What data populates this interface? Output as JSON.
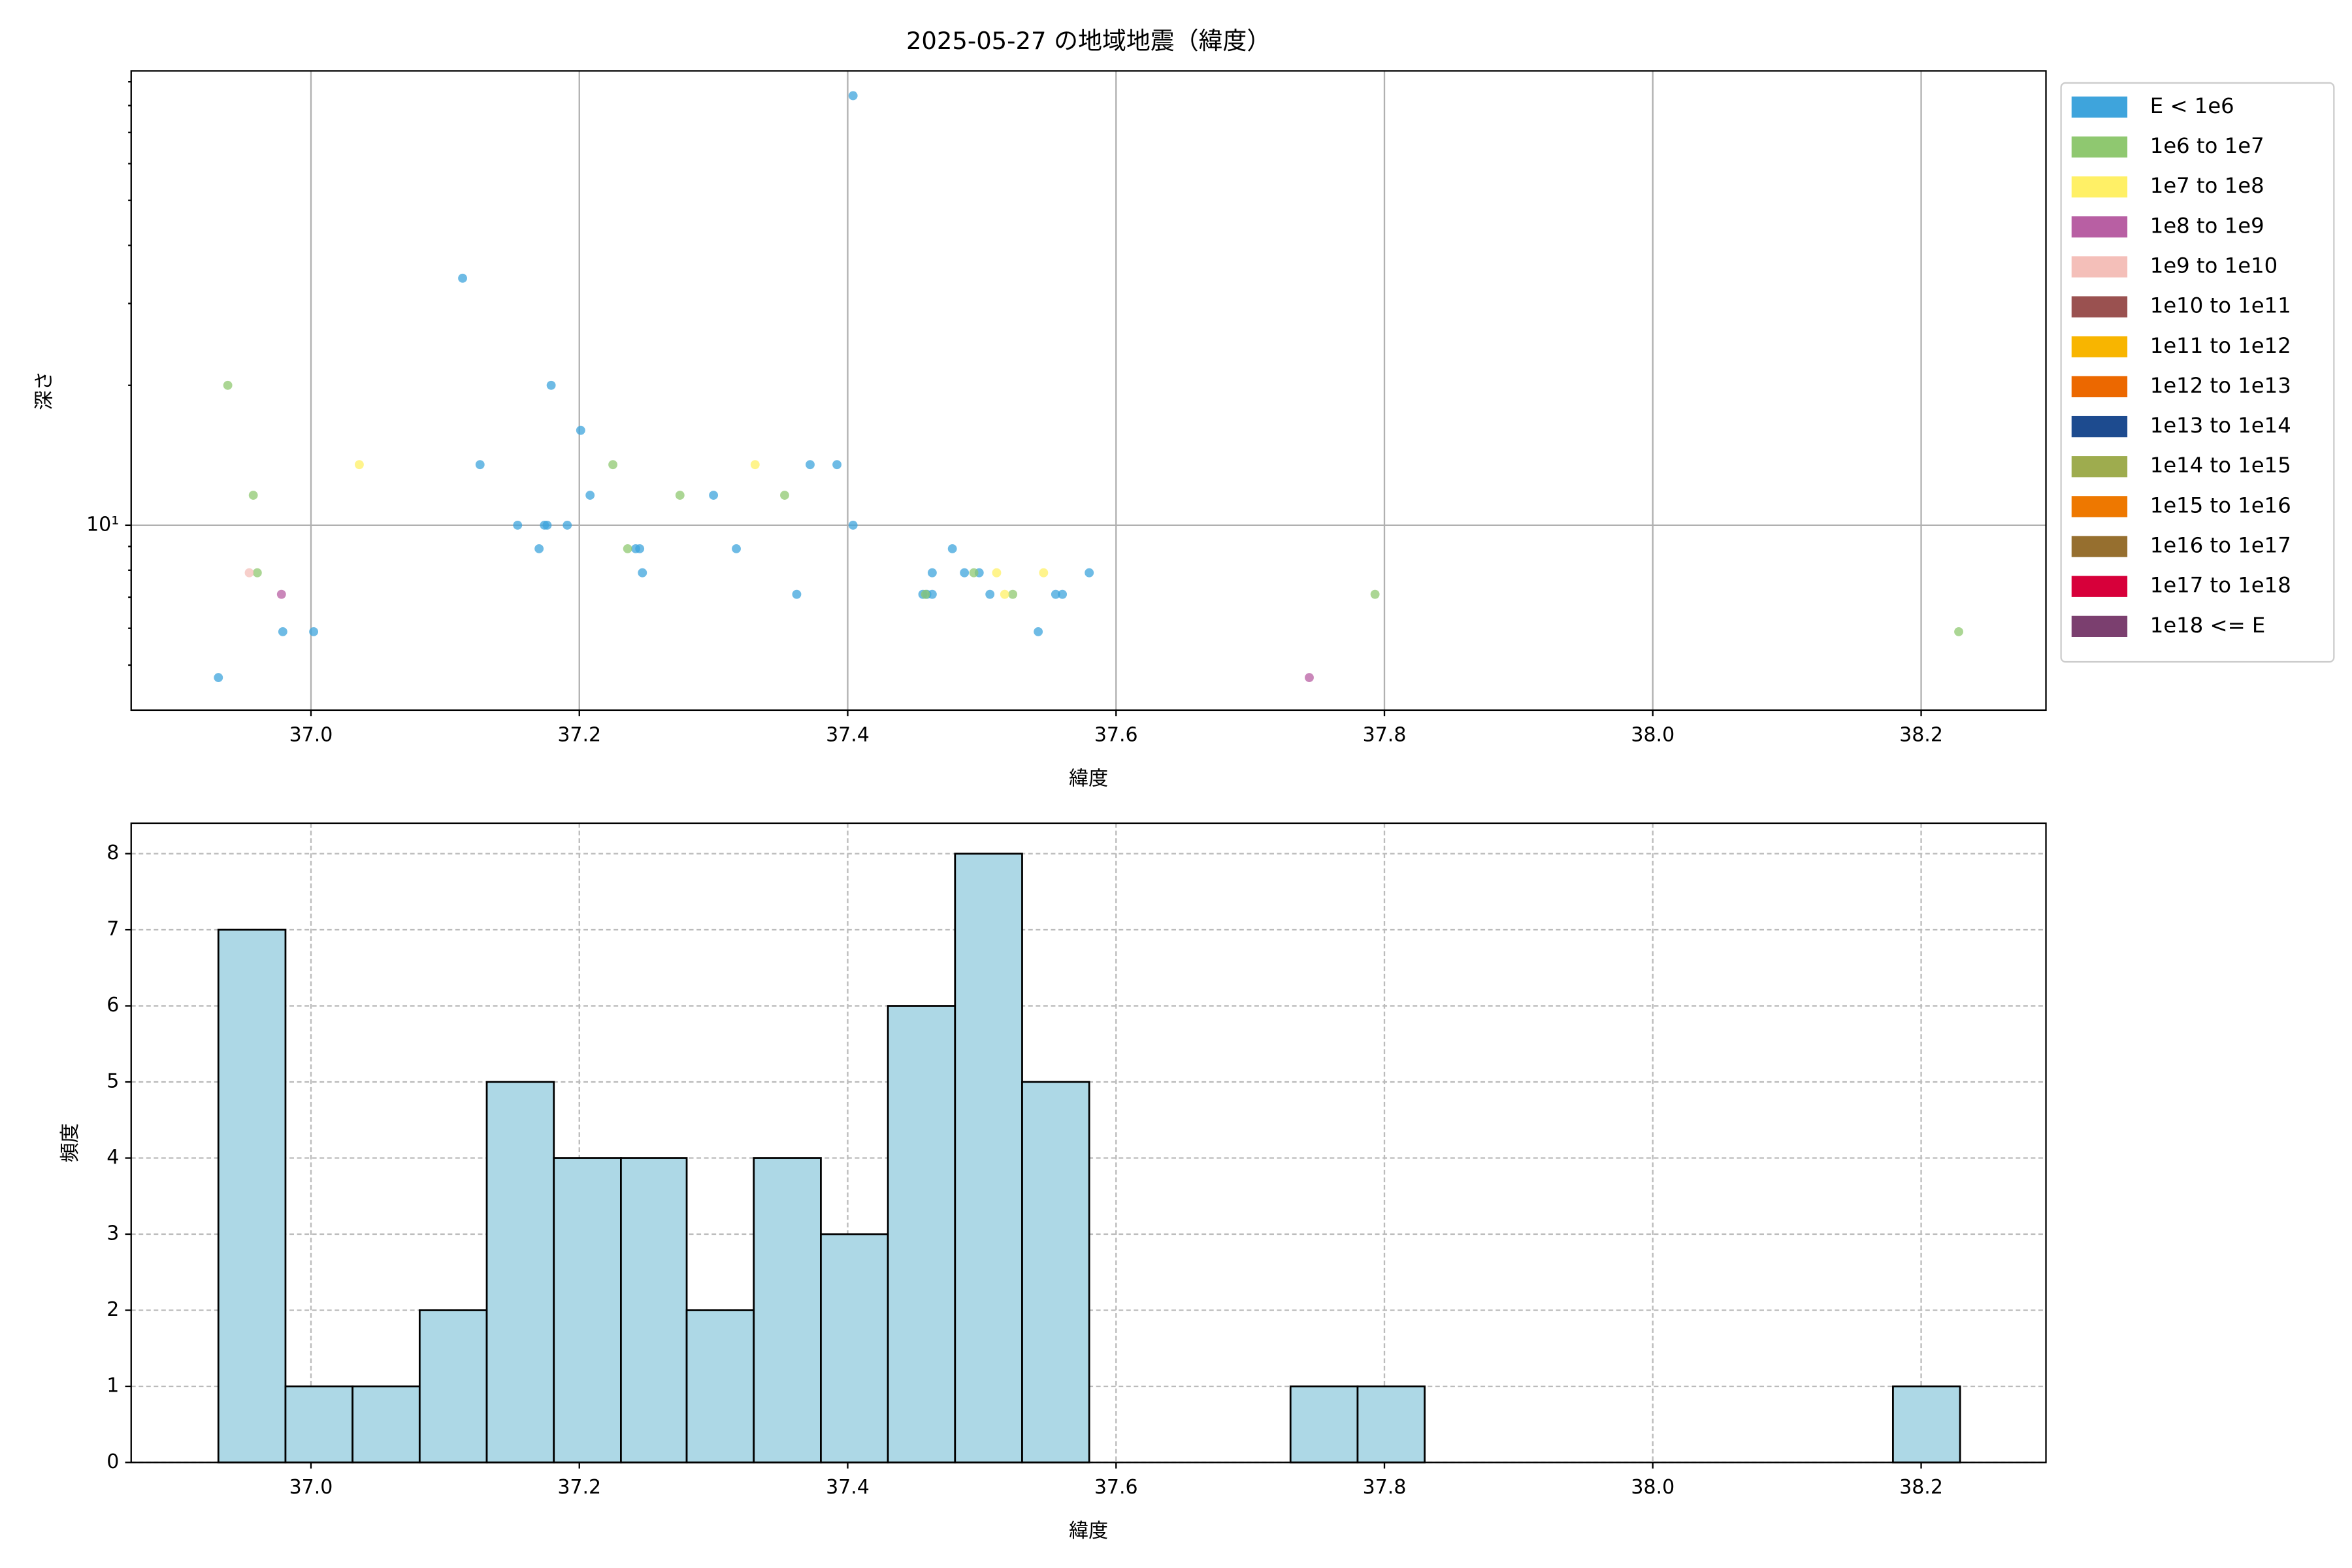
{
  "chart_data": [
    {
      "type": "scatter",
      "title": "2025-05-27 の地域地震（緯度）",
      "xlabel": "緯度",
      "ylabel": "深さ",
      "xlim": [
        36.866,
        38.293
      ],
      "ylim": [
        4,
        95
      ],
      "yscale": "log",
      "xticks": [
        {
          "value": 37.0,
          "label": "37.0"
        },
        {
          "value": 37.2,
          "label": "37.2"
        },
        {
          "value": 37.4,
          "label": "37.4"
        },
        {
          "value": 37.6,
          "label": "37.6"
        },
        {
          "value": 37.8,
          "label": "37.8"
        },
        {
          "value": 38.0,
          "label": "38.0"
        },
        {
          "value": 38.2,
          "label": "38.2"
        }
      ],
      "yticks": [
        {
          "value": 10,
          "label": "10¹"
        }
      ],
      "yminorticks": [
        5,
        6,
        7,
        8,
        9,
        20,
        30,
        40,
        50,
        60,
        70,
        80,
        90
      ],
      "grid": true,
      "grid_style": "solid",
      "legend": "right",
      "series": [
        {
          "name": "E < 1e6",
          "color": "#3ea4dc",
          "x": [
            36.931,
            36.979,
            37.002,
            37.113,
            37.126,
            37.154,
            37.17,
            37.174,
            37.176,
            37.179,
            37.191,
            37.201,
            37.208,
            37.242,
            37.245,
            37.247,
            37.3,
            37.317,
            37.362,
            37.372,
            37.392,
            37.404,
            37.404,
            37.456,
            37.459,
            37.463,
            37.463,
            37.478,
            37.487,
            37.498,
            37.506,
            37.542,
            37.555,
            37.56,
            37.58
          ],
          "y": [
            4.7,
            5.9,
            5.9,
            34,
            13.5,
            10,
            8.9,
            10,
            10,
            20,
            10,
            16,
            11.6,
            8.9,
            8.9,
            7.9,
            11.6,
            8.9,
            7.1,
            13.5,
            13.5,
            84,
            10,
            7.1,
            7.1,
            7.1,
            7.9,
            8.9,
            7.9,
            7.9,
            7.1,
            5.9,
            7.1,
            7.1,
            7.9
          ]
        },
        {
          "name": "1e6 to 1e7",
          "color": "#8fc870",
          "x": [
            36.938,
            36.957,
            36.96,
            37.225,
            37.236,
            37.275,
            37.353,
            37.458,
            37.494,
            37.523,
            37.793,
            38.228
          ],
          "y": [
            20,
            11.6,
            7.9,
            13.5,
            8.9,
            11.6,
            11.6,
            7.1,
            7.9,
            7.1,
            7.1,
            5.9
          ]
        },
        {
          "name": "1e7 to 1e8",
          "color": "#fff066",
          "x": [
            37.036,
            37.331,
            37.511,
            37.517,
            37.546
          ],
          "y": [
            13.5,
            13.5,
            7.9,
            7.1,
            7.9
          ]
        },
        {
          "name": "1e8 to 1e9",
          "color": "#b85fa3",
          "x": [
            36.978,
            37.744
          ],
          "y": [
            7.1,
            4.7
          ]
        },
        {
          "name": "1e9 to 1e10",
          "color": "#f4bfb9",
          "x": [
            36.954
          ],
          "y": [
            7.9
          ]
        },
        {
          "name": "1e10 to 1e11",
          "color": "#9a5150",
          "x": [],
          "y": []
        },
        {
          "name": "1e11 to 1e12",
          "color": "#f8b500",
          "x": [],
          "y": []
        },
        {
          "name": "1e12 to 1e13",
          "color": "#ec6800",
          "x": [],
          "y": []
        },
        {
          "name": "1e13 to 1e14",
          "color": "#1d4b8f",
          "x": [],
          "y": []
        },
        {
          "name": "1e14 to 1e15",
          "color": "#9eac4e",
          "x": [],
          "y": []
        },
        {
          "name": "1e15 to 1e16",
          "color": "#ee7800",
          "x": [],
          "y": []
        },
        {
          "name": "1e16 to 1e17",
          "color": "#966f2f",
          "x": [],
          "y": []
        },
        {
          "name": "1e17 to 1e18",
          "color": "#d7003a",
          "x": [],
          "y": []
        },
        {
          "name": "1e18 <= E",
          "color": "#7b3f6f",
          "x": [],
          "y": []
        }
      ]
    },
    {
      "type": "histogram",
      "xlabel": "緯度",
      "ylabel": "頻度",
      "xlim": [
        36.866,
        38.293
      ],
      "ylim": [
        0,
        8.4
      ],
      "xticks": [
        {
          "value": 37.0,
          "label": "37.0"
        },
        {
          "value": 37.2,
          "label": "37.2"
        },
        {
          "value": 37.4,
          "label": "37.4"
        },
        {
          "value": 37.6,
          "label": "37.6"
        },
        {
          "value": 37.8,
          "label": "37.8"
        },
        {
          "value": 38.0,
          "label": "38.0"
        },
        {
          "value": 38.2,
          "label": "38.2"
        }
      ],
      "yticks": [
        0,
        1,
        2,
        3,
        4,
        5,
        6,
        7,
        8
      ],
      "grid": true,
      "grid_style": "dashed",
      "color": "#add8e6",
      "edgecolor": "#000000",
      "bins": [
        36.931,
        36.981,
        37.031,
        37.081,
        37.131,
        37.181,
        37.231,
        37.28,
        37.33,
        37.38,
        37.43,
        37.48,
        37.53,
        37.58,
        37.63,
        37.68,
        37.73,
        37.78,
        37.83,
        37.88,
        37.93,
        37.98,
        38.029,
        38.079,
        38.129,
        38.179,
        38.229
      ],
      "values": [
        7,
        1,
        1,
        2,
        5,
        4,
        4,
        2,
        4,
        3,
        6,
        8,
        5,
        0,
        0,
        0,
        1,
        1,
        0,
        0,
        0,
        0,
        0,
        0,
        0,
        1
      ]
    }
  ]
}
